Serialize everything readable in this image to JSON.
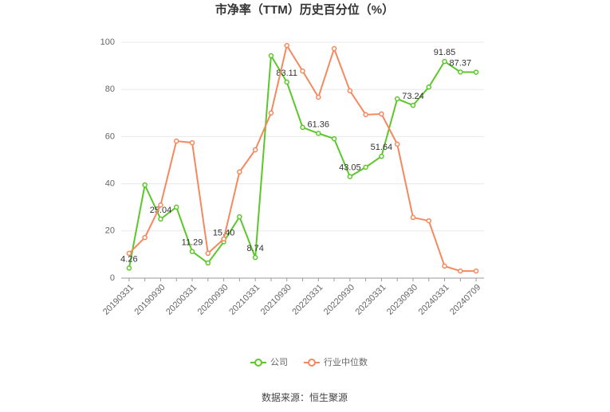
{
  "chart_data": {
    "type": "line",
    "title": "市净率（TTM）历史百分位（%）",
    "source": "数据来源：恒生聚源",
    "categories": [
      "20190331",
      null,
      "20190930",
      null,
      "20200331",
      null,
      "20200930",
      null,
      "20210331",
      null,
      "20210930",
      null,
      "20220331",
      null,
      "20220930",
      null,
      "20230331",
      null,
      "20230930",
      null,
      "20240331",
      null,
      "20240709"
    ],
    "series": [
      {
        "name": "公司",
        "color": "#5cc72a",
        "values": [
          4.26,
          39.5,
          25.04,
          30.1,
          11.29,
          6.4,
          15.4,
          26,
          8.74,
          94.3,
          83.11,
          63.9,
          61.36,
          59.1,
          43.05,
          47,
          51.64,
          76,
          73.24,
          81,
          91.85,
          87.37,
          87.3
        ],
        "value_labels": [
          "4.26",
          null,
          "25.04",
          null,
          "11.29",
          null,
          "15.40",
          null,
          "8.74",
          null,
          "83.11",
          null,
          "61.36",
          null,
          "43.05",
          null,
          "51.64",
          null,
          "73.24",
          null,
          "91.85",
          "87.37",
          null
        ]
      },
      {
        "name": "行业中位数",
        "color": "#f4895f",
        "values": [
          10.5,
          17.2,
          31,
          58.1,
          57.4,
          10.5,
          16.6,
          45,
          54.4,
          70,
          98.6,
          87.8,
          76.7,
          97.3,
          79.4,
          69.3,
          69.6,
          56.8,
          25.7,
          24.3,
          5.1,
          3,
          3
        ]
      }
    ],
    "ylim": [
      0,
      100
    ],
    "yticks": [
      0,
      20,
      40,
      60,
      80,
      100
    ],
    "grid": true
  }
}
